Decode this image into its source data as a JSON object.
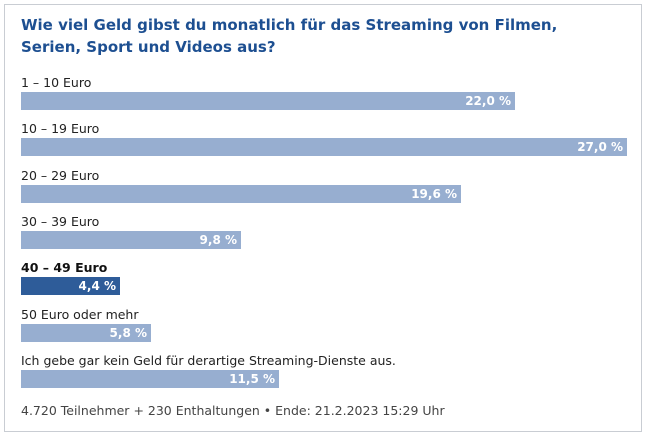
{
  "poll": {
    "question": "Wie viel Geld gibst du monatlich für das Streaming von Filmen, Serien, Sport und Videos aus?"
  },
  "chart_data": {
    "type": "bar",
    "orientation": "horizontal",
    "title": "Wie viel Geld gibst du monatlich für das Streaming von Filmen, Serien, Sport und Videos aus?",
    "categories": [
      "1 – 10 Euro",
      "10 – 19 Euro",
      "20 – 29 Euro",
      "30 – 39 Euro",
      "40 – 49 Euro",
      "50 Euro oder mehr",
      "Ich gebe gar kein Geld für derartige Streaming-Dienste aus."
    ],
    "values": [
      22.0,
      27.0,
      19.6,
      9.8,
      4.4,
      5.8,
      11.5
    ],
    "value_labels": [
      "22,0 %",
      "27,0 %",
      "19,6 %",
      "9,8 %",
      "4,4 %",
      "5,8 %",
      "11,5 %"
    ],
    "unit": "%",
    "xlim": [
      0,
      27.0
    ],
    "selected_index": 4,
    "colors": {
      "bar": "#97aed0",
      "selected_bar": "#2e5c99",
      "title": "#1d4f91"
    }
  },
  "footer": {
    "participants": "4.720 Teilnehmer",
    "separator_plus": "+",
    "abstentions": "230 Enthaltungen",
    "separator_dot": "•",
    "end_label": "Ende: 21.2.2023 15:29 Uhr"
  }
}
